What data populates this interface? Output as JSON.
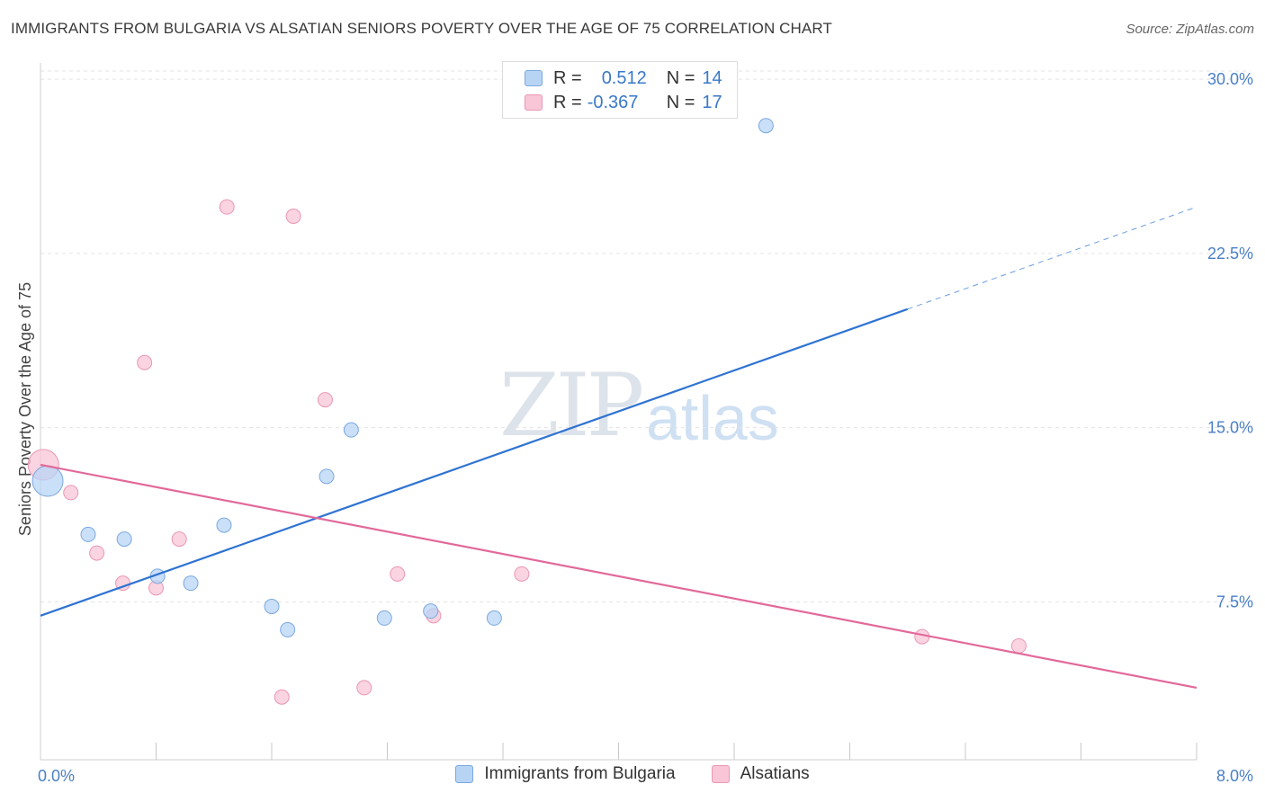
{
  "title": "IMMIGRANTS FROM BULGARIA VS ALSATIAN SENIORS POVERTY OVER THE AGE OF 75 CORRELATION CHART",
  "source": "Source: ZipAtlas.com",
  "watermark": {
    "zip": "ZIP",
    "atlas": "atlas"
  },
  "legend": {
    "rows": [
      {
        "r_label": "R =",
        "r_value": "0.512",
        "n_label": "N =",
        "n_value": "14"
      },
      {
        "r_label": "R =",
        "r_value": "-0.367",
        "n_label": "N =",
        "n_value": "17"
      }
    ]
  },
  "colors": {
    "blue_fill": "#b8d4f5",
    "blue_stroke": "#7aa8e0",
    "blue_line": "#2f73d2",
    "pink_fill": "#f8c6d6",
    "pink_stroke": "#ea97b2",
    "pink_line": "#e2699a",
    "tick_text": "#4a7fc8",
    "grid": "#e3e3e3"
  },
  "chart_data": {
    "type": "scatter",
    "title": "IMMIGRANTS FROM BULGARIA VS ALSATIAN SENIORS POVERTY OVER THE AGE OF 75 CORRELATION CHART",
    "xlabel": "",
    "ylabel": "Seniors Poverty Over the Age of 75",
    "xlim": [
      0,
      8
    ],
    "ylim": [
      0.7,
      30.7
    ],
    "x_tick_labels": [
      {
        "value": 0,
        "label": "0.0%"
      },
      {
        "value": 8,
        "label": "8.0%"
      }
    ],
    "x_minor_ticks": [
      0.8,
      1.6,
      2.4,
      3.2,
      4.0,
      4.8,
      5.6,
      6.4,
      7.2,
      8.0
    ],
    "y_ticks": [
      {
        "value": 7.5,
        "label": "7.5%"
      },
      {
        "value": 15.0,
        "label": "15.0%"
      },
      {
        "value": 22.5,
        "label": "22.5%"
      },
      {
        "value": 30.0,
        "label": "30.0%"
      }
    ],
    "grid": true,
    "legend_placement": "bottom-center",
    "series": [
      {
        "name": "Immigrants from Bulgaria",
        "color": "#b8d4f5",
        "points": [
          {
            "x": 0.05,
            "y": 12.7,
            "big": true
          },
          {
            "x": 0.33,
            "y": 10.4
          },
          {
            "x": 0.58,
            "y": 10.2
          },
          {
            "x": 0.81,
            "y": 8.6
          },
          {
            "x": 1.04,
            "y": 8.3
          },
          {
            "x": 1.27,
            "y": 10.8
          },
          {
            "x": 1.6,
            "y": 7.3
          },
          {
            "x": 1.71,
            "y": 6.3
          },
          {
            "x": 1.98,
            "y": 12.9
          },
          {
            "x": 2.15,
            "y": 14.9
          },
          {
            "x": 2.38,
            "y": 6.8
          },
          {
            "x": 2.7,
            "y": 7.1
          },
          {
            "x": 3.14,
            "y": 6.8
          },
          {
            "x": 5.02,
            "y": 28.0
          }
        ],
        "trend": {
          "x1": 0,
          "y1": 6.9,
          "x2": 6.0,
          "y2": 20.1,
          "dash_to_x": 8.0,
          "dash_to_y": 24.5
        }
      },
      {
        "name": "Alsatians",
        "color": "#f8c6d6",
        "points": [
          {
            "x": 0.02,
            "y": 13.4,
            "big": true
          },
          {
            "x": 0.21,
            "y": 12.2
          },
          {
            "x": 0.39,
            "y": 9.6
          },
          {
            "x": 0.57,
            "y": 8.3
          },
          {
            "x": 0.72,
            "y": 17.8
          },
          {
            "x": 0.8,
            "y": 8.1
          },
          {
            "x": 0.96,
            "y": 10.2
          },
          {
            "x": 1.29,
            "y": 24.5
          },
          {
            "x": 1.67,
            "y": 3.4
          },
          {
            "x": 1.75,
            "y": 24.1
          },
          {
            "x": 1.97,
            "y": 16.2
          },
          {
            "x": 2.24,
            "y": 3.8
          },
          {
            "x": 2.47,
            "y": 8.7
          },
          {
            "x": 2.72,
            "y": 6.9
          },
          {
            "x": 3.33,
            "y": 8.7
          },
          {
            "x": 6.1,
            "y": 6.0
          },
          {
            "x": 6.77,
            "y": 5.6
          }
        ],
        "trend": {
          "x1": 0,
          "y1": 13.4,
          "x2": 8.0,
          "y2": 3.8
        }
      }
    ]
  }
}
